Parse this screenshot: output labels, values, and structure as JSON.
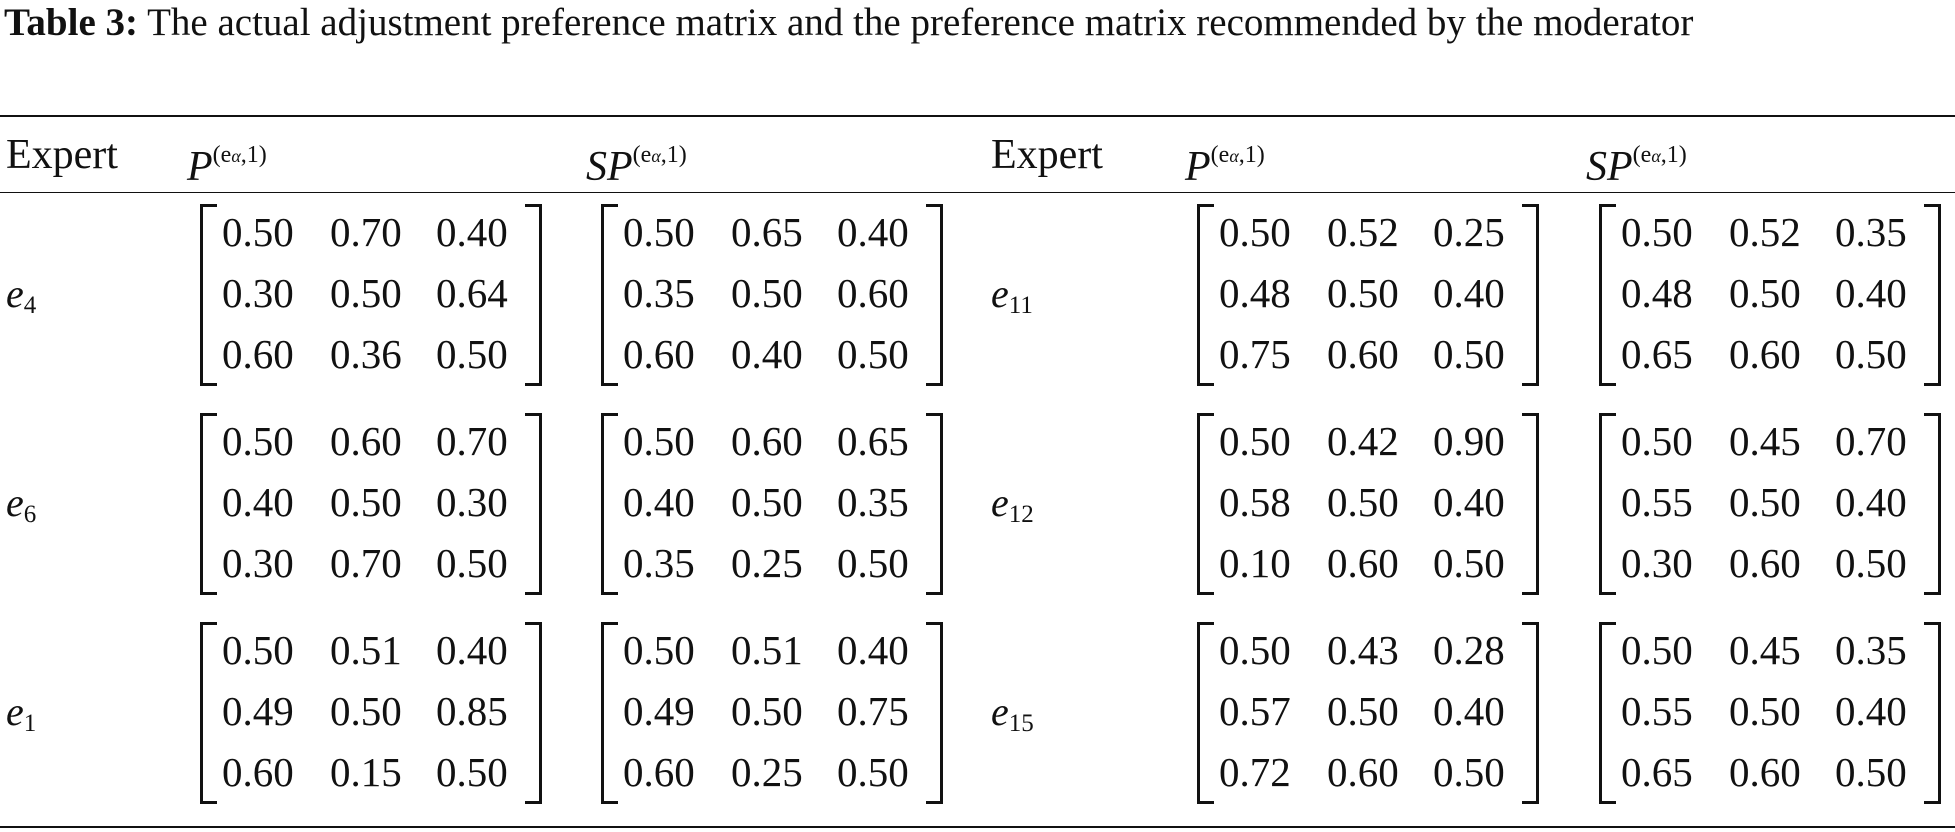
{
  "caption": {
    "label": "Table 3:",
    "text": "The actual adjustment preference matrix and the preference matrix recommended by the moderator"
  },
  "table": {
    "headers": [
      "Expert",
      {
        "symbol": "P",
        "sup_start": "(e",
        "sup_sub": "α",
        "sup_end": ",1)"
      },
      {
        "symbol": "SP",
        "sup_start": "(e",
        "sup_sub": "α",
        "sup_end": ",1)"
      },
      "Expert",
      {
        "symbol": "P",
        "sup_start": "(e",
        "sup_sub": "α",
        "sup_end": ",1)"
      },
      {
        "symbol": "SP",
        "sup_start": "(e",
        "sup_sub": "α",
        "sup_end": ",1)"
      }
    ],
    "rows": [
      {
        "left": {
          "expert": {
            "base": "e",
            "sub": "4"
          },
          "P": [
            [
              "0.50",
              "0.70",
              "0.40"
            ],
            [
              "0.30",
              "0.50",
              "0.64"
            ],
            [
              "0.60",
              "0.36",
              "0.50"
            ]
          ],
          "SP": [
            [
              "0.50",
              "0.65",
              "0.40"
            ],
            [
              "0.35",
              "0.50",
              "0.60"
            ],
            [
              "0.60",
              "0.40",
              "0.50"
            ]
          ]
        },
        "right": {
          "expert": {
            "base": "e",
            "sub": "11"
          },
          "P": [
            [
              "0.50",
              "0.52",
              "0.25"
            ],
            [
              "0.48",
              "0.50",
              "0.40"
            ],
            [
              "0.75",
              "0.60",
              "0.50"
            ]
          ],
          "SP": [
            [
              "0.50",
              "0.52",
              "0.35"
            ],
            [
              "0.48",
              "0.50",
              "0.40"
            ],
            [
              "0.65",
              "0.60",
              "0.50"
            ]
          ]
        }
      },
      {
        "left": {
          "expert": {
            "base": "e",
            "sub": "6"
          },
          "P": [
            [
              "0.50",
              "0.60",
              "0.70"
            ],
            [
              "0.40",
              "0.50",
              "0.30"
            ],
            [
              "0.30",
              "0.70",
              "0.50"
            ]
          ],
          "SP": [
            [
              "0.50",
              "0.60",
              "0.65"
            ],
            [
              "0.40",
              "0.50",
              "0.35"
            ],
            [
              "0.35",
              "0.25",
              "0.50"
            ]
          ]
        },
        "right": {
          "expert": {
            "base": "e",
            "sub": "12"
          },
          "P": [
            [
              "0.50",
              "0.42",
              "0.90"
            ],
            [
              "0.58",
              "0.50",
              "0.40"
            ],
            [
              "0.10",
              "0.60",
              "0.50"
            ]
          ],
          "SP": [
            [
              "0.50",
              "0.45",
              "0.70"
            ],
            [
              "0.55",
              "0.50",
              "0.40"
            ],
            [
              "0.30",
              "0.60",
              "0.50"
            ]
          ]
        }
      },
      {
        "left": {
          "expert": {
            "base": "e",
            "sub": "1"
          },
          "P": [
            [
              "0.50",
              "0.51",
              "0.40"
            ],
            [
              "0.49",
              "0.50",
              "0.85"
            ],
            [
              "0.60",
              "0.15",
              "0.50"
            ]
          ],
          "SP": [
            [
              "0.50",
              "0.51",
              "0.40"
            ],
            [
              "0.49",
              "0.50",
              "0.75"
            ],
            [
              "0.60",
              "0.25",
              "0.50"
            ]
          ]
        },
        "right": {
          "expert": {
            "base": "e",
            "sub": "15"
          },
          "P": [
            [
              "0.50",
              "0.43",
              "0.28"
            ],
            [
              "0.57",
              "0.50",
              "0.40"
            ],
            [
              "0.72",
              "0.60",
              "0.50"
            ]
          ],
          "SP": [
            [
              "0.50",
              "0.45",
              "0.35"
            ],
            [
              "0.55",
              "0.50",
              "0.40"
            ],
            [
              "0.65",
              "0.60",
              "0.50"
            ]
          ]
        }
      }
    ]
  }
}
